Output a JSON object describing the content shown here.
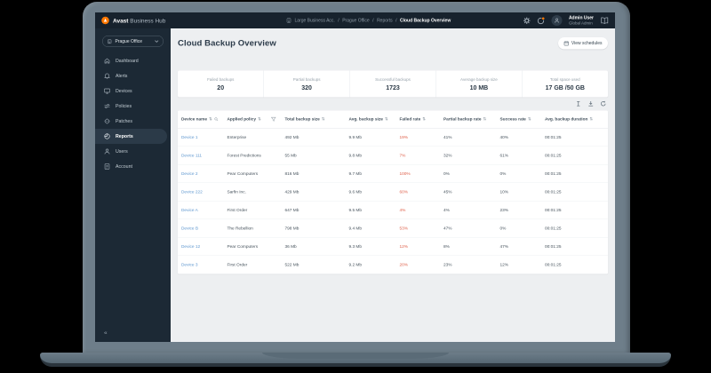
{
  "topbar": {
    "brand": {
      "name": "Avast",
      "suffix": " Business Hub"
    },
    "breadcrumb": {
      "items": [
        "Large Business Acc.",
        "Prague Office",
        "Reports",
        "Cloud Backup Overview"
      ],
      "separator": "/"
    },
    "user": {
      "name": "Admin User",
      "role": "Global Admin"
    }
  },
  "sidebar": {
    "org_selector": {
      "label": "Prague Office"
    },
    "items": [
      {
        "label": "Dashboard",
        "icon": "dashboard-icon"
      },
      {
        "label": "Alerts",
        "icon": "alerts-icon"
      },
      {
        "label": "Devices",
        "icon": "devices-icon"
      },
      {
        "label": "Policies",
        "icon": "policies-icon"
      },
      {
        "label": "Patches",
        "icon": "patches-icon"
      },
      {
        "label": "Reports",
        "icon": "reports-icon",
        "active": true
      },
      {
        "label": "Users",
        "icon": "users-icon"
      },
      {
        "label": "Account",
        "icon": "account-icon"
      }
    ],
    "collapse_glyph": "«"
  },
  "main": {
    "title": "Cloud Backup Overview",
    "view_schedules": {
      "label": "View schedules",
      "icon": "calendar-icon"
    },
    "stats": [
      {
        "label": "Failed backups",
        "value": "20"
      },
      {
        "label": "Partial backups",
        "value": "320"
      },
      {
        "label": "Successful backups",
        "value": "1723"
      },
      {
        "label": "Average backup size",
        "value": "10 MB"
      },
      {
        "label": "Total space used",
        "value": "17 GB /50 GB"
      }
    ],
    "table_toolbar": {
      "icons": [
        "column-width-icon",
        "download-icon",
        "refresh-icon"
      ]
    },
    "table": {
      "sort_glyph": "⇅",
      "columns": [
        {
          "label": "Device name",
          "extra_icon": "search-icon"
        },
        {
          "label": "Applied policy",
          "extra_icon": "filter-icon"
        },
        {
          "label": "Total backup size"
        },
        {
          "label": "Avg. backup size"
        },
        {
          "label": "Failed rate"
        },
        {
          "label": "Partial backup rate"
        },
        {
          "label": "Success rate"
        },
        {
          "label": "Avg. backup duration"
        }
      ],
      "rows": [
        {
          "device": "Device 1",
          "policy": "Enterprise",
          "total_size": "492 Mb",
          "avg_size": "9.9 Mb",
          "failed_rate": "19%",
          "partial_rate": "41%",
          "success_rate": "40%",
          "duration": "00:01:25"
        },
        {
          "device": "Device 111",
          "policy": "Forest Predictions",
          "total_size": "55 Mb",
          "avg_size": "9.8 Mb",
          "failed_rate": "7%",
          "partial_rate": "32%",
          "success_rate": "61%",
          "duration": "00:01:25"
        },
        {
          "device": "Device 2",
          "policy": "Pear Computers",
          "total_size": "816 Mb",
          "avg_size": "9.7 Mb",
          "failed_rate": "100%",
          "partial_rate": "0%",
          "success_rate": "0%",
          "duration": "00:01:25"
        },
        {
          "device": "Device 222",
          "policy": "Sarfin Inc.",
          "total_size": "429 Mb",
          "avg_size": "9.6 Mb",
          "failed_rate": "60%",
          "partial_rate": "45%",
          "success_rate": "10%",
          "duration": "00:01:25"
        },
        {
          "device": "Device A",
          "policy": "First Order",
          "total_size": "647 Mb",
          "avg_size": "9.5 Mb",
          "failed_rate": "4%",
          "partial_rate": "4%",
          "success_rate": "23%",
          "duration": "00:01:25"
        },
        {
          "device": "Device B",
          "policy": "The Rebellion",
          "total_size": "798 Mb",
          "avg_size": "9.4 Mb",
          "failed_rate": "53%",
          "partial_rate": "47%",
          "success_rate": "0%",
          "duration": "00:01:25"
        },
        {
          "device": "Device 12",
          "policy": "Pear Computers",
          "total_size": "36 Mb",
          "avg_size": "9.3 Mb",
          "failed_rate": "12%",
          "partial_rate": "8%",
          "success_rate": "47%",
          "duration": "00:01:25"
        },
        {
          "device": "Device 3",
          "policy": "First Order",
          "total_size": "522 Mb",
          "avg_size": "9.2 Mb",
          "failed_rate": "20%",
          "partial_rate": "23%",
          "success_rate": "12%",
          "duration": "00:01:25"
        }
      ]
    }
  },
  "colors": {
    "accent_orange": "#ff7800",
    "link_blue": "#5e97cf",
    "failed_red": "#df614b",
    "topbar_bg": "#17222d",
    "sidebar_bg": "#1c2935",
    "main_bg": "#edeff1"
  }
}
